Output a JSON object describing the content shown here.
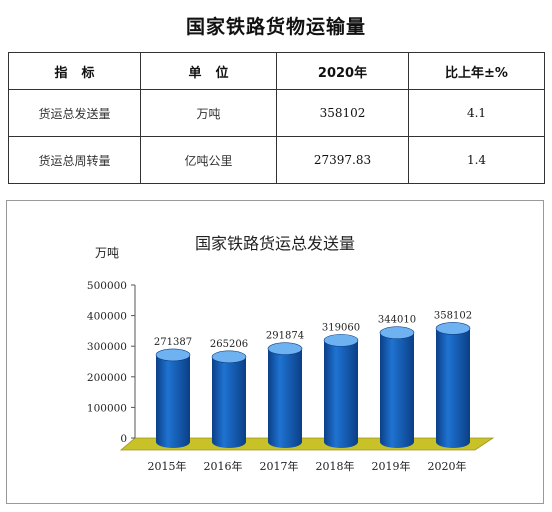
{
  "page_title": "国家铁路货物运输量",
  "table": {
    "headers": [
      "指标",
      "单位",
      "2020年",
      "比上年±%"
    ],
    "rows": [
      {
        "indicator": "货运总发送量",
        "unit": "万吨",
        "value": "358102",
        "change": "4.1"
      },
      {
        "indicator": "货运总周转量",
        "unit": "亿吨公里",
        "value": "27397.83",
        "change": "1.4"
      }
    ]
  },
  "colors": {
    "bar": "#1f73d2",
    "bar_dark": "#0b3f86",
    "bar_light": "#6fb2f2",
    "floor": "#c9c128",
    "axis": "#555555"
  },
  "chart_data": {
    "type": "bar",
    "title": "国家铁路货运总发送量",
    "unit_label": "万吨",
    "categories": [
      "2015年",
      "2016年",
      "2017年",
      "2018年",
      "2019年",
      "2020年"
    ],
    "values": [
      271387,
      265206,
      291874,
      319060,
      344010,
      358102
    ],
    "data_labels": [
      "271387",
      "265206",
      "291874",
      "319060",
      "344010",
      "358102"
    ],
    "ylim": [
      0,
      500000
    ],
    "yticks": [
      0,
      100000,
      200000,
      300000,
      400000,
      500000
    ],
    "ytick_labels": [
      "0",
      "100000",
      "200000",
      "300000",
      "400000",
      "500000"
    ],
    "grid": false,
    "legend": "none"
  }
}
